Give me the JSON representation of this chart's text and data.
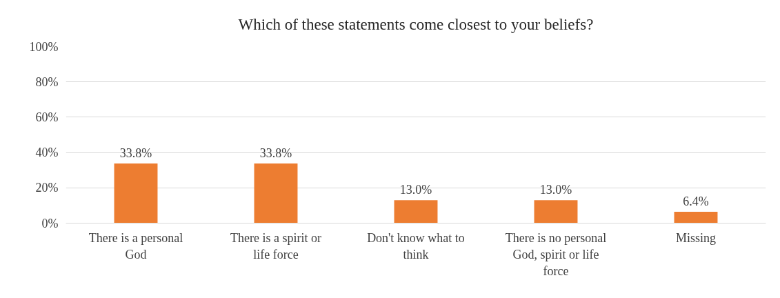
{
  "chart_data": {
    "type": "bar",
    "title": "Which of these statements come closest to your beliefs?",
    "categories": [
      "There is a personal God",
      "There is a spirit or life force",
      "Don't know what to think",
      "There is no personal God, spirit or life force",
      "Missing"
    ],
    "values": [
      33.8,
      33.8,
      13.0,
      13.0,
      6.4
    ],
    "value_labels": [
      "33.8%",
      "33.8%",
      "13.0%",
      "13.0%",
      "6.4%"
    ],
    "color": "#ed7d31",
    "ylim": [
      0,
      100
    ],
    "yticks": [
      {
        "value": 0,
        "label": "0%"
      },
      {
        "value": 20,
        "label": "20%"
      },
      {
        "value": 40,
        "label": "40%"
      },
      {
        "value": 60,
        "label": "60%"
      },
      {
        "value": 80,
        "label": "80%"
      },
      {
        "value": 100,
        "label": "100%"
      }
    ],
    "grid": "y"
  }
}
